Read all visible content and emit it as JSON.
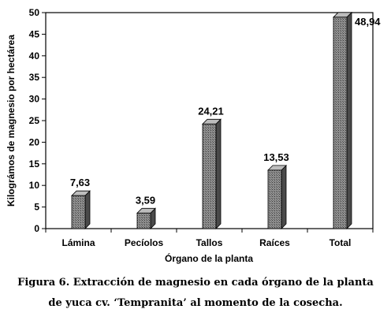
{
  "chart_data": {
    "type": "bar",
    "categories": [
      "Lámina",
      "Pecíolos",
      "Tallos",
      "Raíces",
      "Total"
    ],
    "values": [
      7.63,
      3.59,
      24.21,
      13.53,
      48.94
    ],
    "value_labels": [
      "7,63",
      "3,59",
      "24,21",
      "13,53",
      "48,94"
    ],
    "xlabel": "Órgano de la planta",
    "ylabel": "Kilográmos de magnesio por hectárea",
    "ylim": [
      0,
      50
    ],
    "yticks": [
      0,
      5,
      10,
      15,
      20,
      25,
      30,
      35,
      40,
      45,
      50
    ],
    "grid": false,
    "bar_style": "3d-hatched-gray"
  },
  "caption": {
    "line1": "Figura 6. Extracción de magnesio en cada órgano de la planta",
    "line2": "de yuca cv. ‘Tempranita’ al momento de la cosecha."
  }
}
